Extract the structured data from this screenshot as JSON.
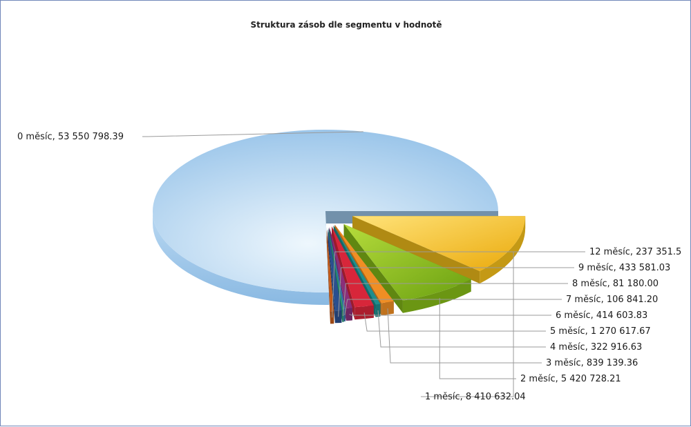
{
  "chart_data": {
    "type": "pie",
    "style": "3d-exploded",
    "title": "Struktura zásob dle segmentu v hodnotě",
    "legend": "none",
    "slices": [
      {
        "label": "0 měsíc",
        "value": 53550798.39,
        "display": "53 550 798.39",
        "color": "#9fc9ee"
      },
      {
        "label": "1 měsíc",
        "value": 8410632.04,
        "display": "8 410 632.04",
        "color": "#f5bf1a"
      },
      {
        "label": "2 měsíc",
        "value": 5420728.21,
        "display": "5 420 728.21",
        "color": "#86bb18"
      },
      {
        "label": "3 měsíc",
        "value": 839139.36,
        "display": "839 139.36",
        "color": "#f08e24"
      },
      {
        "label": "4 měsíc",
        "value": 322916.63,
        "display": "322 916.63",
        "color": "#1f8d8d"
      },
      {
        "label": "5 měsíc",
        "value": 1270617.67,
        "display": "1 270 617.67",
        "color": "#d7263a"
      },
      {
        "label": "6 měsíc",
        "value": 414603.83,
        "display": "414 603.83",
        "color": "#8a2f7a"
      },
      {
        "label": "7 měsíc",
        "value": 106841.2,
        "display": "106 841.20",
        "color": "#3a6fb0"
      },
      {
        "label": "8 měsíc",
        "value": 81180.0,
        "display": "81 180.00",
        "color": "#2e9e7a"
      },
      {
        "label": "9 měsíc",
        "value": 433581.03,
        "display": "433 581.03",
        "color": "#2a4f8f"
      },
      {
        "label": "12 měsíc",
        "value": 237351.5,
        "display": "237 351.5",
        "color": "#c25a1a"
      }
    ]
  }
}
